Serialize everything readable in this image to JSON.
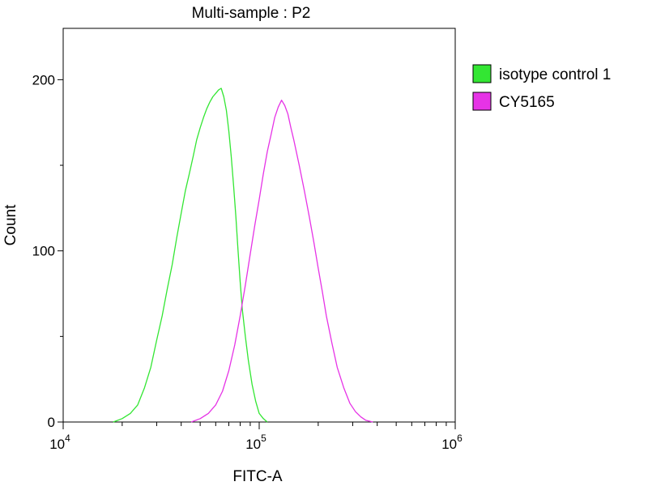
{
  "chart_data": {
    "type": "line",
    "title": "Multi-sample : P2",
    "xlabel": "FITC-A",
    "ylabel": "Count",
    "xscale": "log",
    "xlim": [
      10000,
      1000000
    ],
    "ylim": [
      0,
      230
    ],
    "x_ticks": [
      {
        "base": "10",
        "exp": "4",
        "value": 10000
      },
      {
        "base": "10",
        "exp": "5",
        "value": 100000
      },
      {
        "base": "10",
        "exp": "6",
        "value": 1000000
      }
    ],
    "y_ticks": [
      {
        "label": "0",
        "value": 0
      },
      {
        "label": "100",
        "value": 100
      },
      {
        "label": "200",
        "value": 200
      }
    ],
    "legend_position": "right-top",
    "grid": false,
    "series": [
      {
        "name": "isotype control 1",
        "color": "#33e633",
        "x": [
          18000,
          20000,
          22000,
          24000,
          26000,
          28000,
          30000,
          32000,
          34000,
          36000,
          38000,
          40000,
          42000,
          44000,
          46000,
          48000,
          50000,
          52000,
          54000,
          56000,
          58000,
          60000,
          62000,
          64000,
          66000,
          68000,
          70000,
          72000,
          74000,
          76000,
          78000,
          80000,
          82000,
          85000,
          88000,
          92000,
          96000,
          100000,
          105000,
          110000
        ],
        "values": [
          0,
          2,
          5,
          10,
          20,
          32,
          48,
          62,
          78,
          92,
          108,
          122,
          135,
          145,
          155,
          165,
          172,
          178,
          183,
          187,
          190,
          192,
          194,
          195,
          190,
          182,
          170,
          155,
          138,
          120,
          100,
          82,
          66,
          50,
          36,
          22,
          12,
          5,
          2,
          0
        ]
      },
      {
        "name": "CY5165",
        "color": "#e633e6",
        "x": [
          45000,
          50000,
          55000,
          60000,
          65000,
          70000,
          75000,
          80000,
          85000,
          90000,
          95000,
          100000,
          105000,
          110000,
          115000,
          120000,
          125000,
          130000,
          135000,
          140000,
          145000,
          150000,
          160000,
          170000,
          180000,
          190000,
          200000,
          210000,
          220000,
          235000,
          250000,
          270000,
          290000,
          310000,
          330000,
          350000,
          380000
        ],
        "values": [
          0,
          2,
          5,
          10,
          18,
          30,
          45,
          62,
          80,
          98,
          115,
          130,
          145,
          158,
          168,
          178,
          184,
          188,
          185,
          180,
          172,
          165,
          150,
          135,
          120,
          105,
          90,
          76,
          62,
          46,
          32,
          20,
          11,
          6,
          3,
          1,
          0
        ]
      }
    ]
  }
}
